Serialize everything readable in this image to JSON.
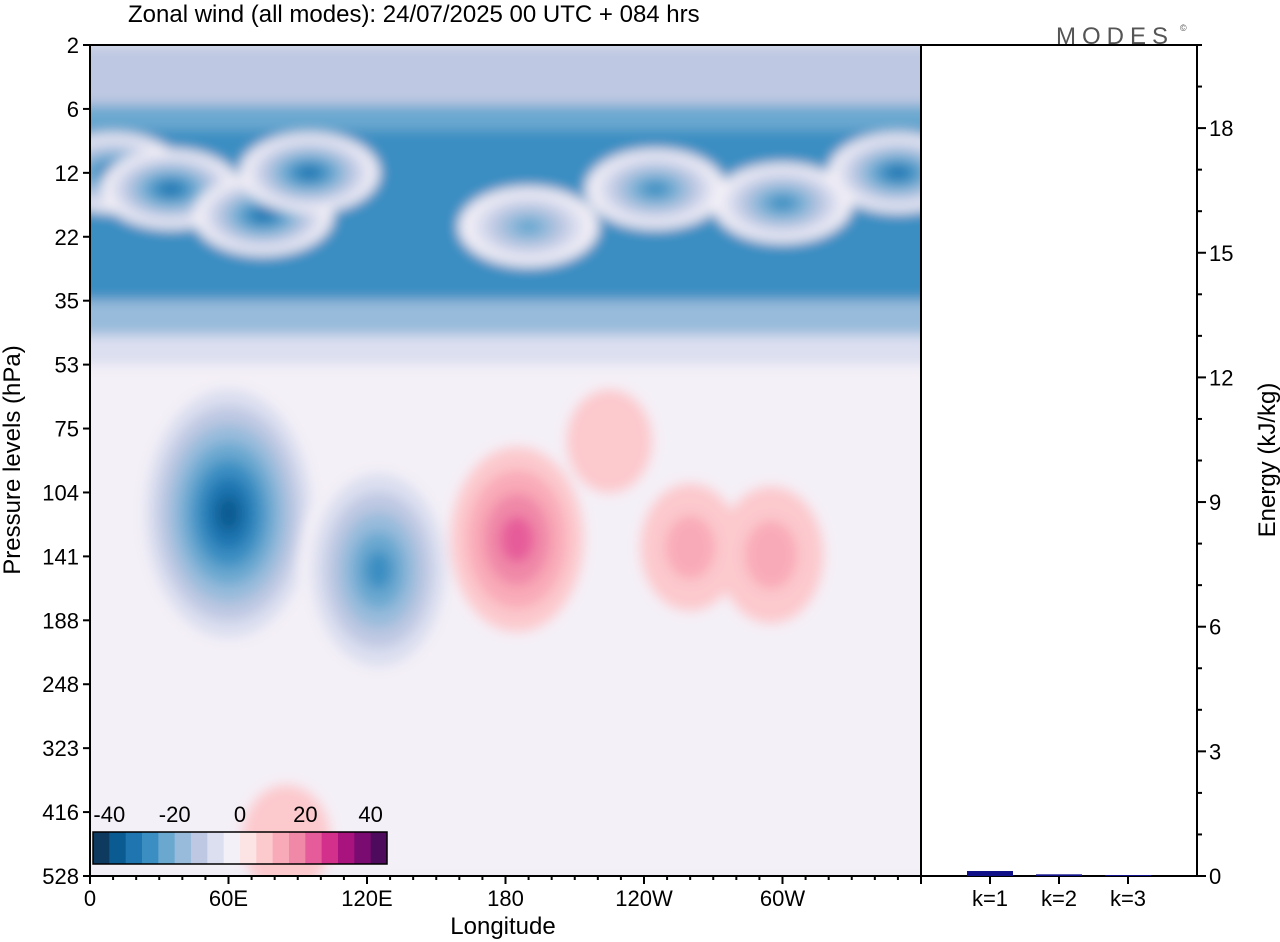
{
  "title": "Zonal wind (all modes):  24/07/2025  00 UTC  + 084 hrs",
  "logo": "MODES",
  "chart_data": [
    {
      "type": "heatmap",
      "xlabel": "Longitude",
      "ylabel": "Pressure levels (hPa)",
      "x_ticks": [
        "0",
        "60E",
        "120E",
        "180",
        "120W",
        "60W"
      ],
      "x_tick_degrees": [
        0,
        60,
        120,
        180,
        240,
        300
      ],
      "x_range_degrees": [
        0,
        360
      ],
      "y_ticks": [
        "2",
        "6",
        "12",
        "22",
        "35",
        "53",
        "75",
        "104",
        "141",
        "188",
        "248",
        "323",
        "416",
        "528"
      ],
      "colorbar": {
        "labels": [
          "-40",
          "-20",
          "0",
          "20",
          "40"
        ],
        "label_values": [
          -40,
          -20,
          0,
          20,
          40
        ],
        "range": [
          -45,
          45
        ],
        "step": 5,
        "colors": [
          "#0d3a5e",
          "#0a5b91",
          "#1f75b0",
          "#3b8ec2",
          "#6aa8d0",
          "#98bbdb",
          "#bec8e2",
          "#dcdff0",
          "#f4f0f7",
          "#fde4e4",
          "#fcc9cd",
          "#f9aab8",
          "#f088a8",
          "#e65b9a",
          "#d2308a",
          "#a8137e",
          "#7a0b70",
          "#4e0a5c"
        ]
      },
      "features": [
        {
          "lon": 10,
          "plev": 12,
          "wind": -38
        },
        {
          "lon": 35,
          "plev": 14,
          "wind": -36
        },
        {
          "lon": 75,
          "plev": 18,
          "wind": -37
        },
        {
          "lon": 95,
          "plev": 12,
          "wind": -36
        },
        {
          "lon": 190,
          "plev": 20,
          "wind": -25
        },
        {
          "lon": 245,
          "plev": 14,
          "wind": -30
        },
        {
          "lon": 300,
          "plev": 16,
          "wind": -32
        },
        {
          "lon": 350,
          "plev": 12,
          "wind": -38
        },
        {
          "lon": 60,
          "plev": 115,
          "wind": -43
        },
        {
          "lon": 125,
          "plev": 150,
          "wind": -32
        },
        {
          "lon": 185,
          "plev": 130,
          "wind": 22
        },
        {
          "lon": 295,
          "plev": 140,
          "wind": 12
        },
        {
          "lon": 260,
          "plev": 135,
          "wind": 10
        },
        {
          "lon": 225,
          "plev": 80,
          "wind": 5
        },
        {
          "lon": 85,
          "plev": 460,
          "wind": 6
        }
      ]
    },
    {
      "type": "bar",
      "categories": [
        "k=1",
        "k=2",
        "k=3"
      ],
      "values": [
        0.12,
        0.04,
        0.01
      ],
      "ylabel": "Energy (kJ/kg)",
      "ylim": [
        0,
        20
      ],
      "y_ticks": [
        "0",
        "3",
        "6",
        "9",
        "12",
        "15",
        "18"
      ],
      "y_tick_values": [
        0,
        3,
        6,
        9,
        12,
        15,
        18
      ],
      "bar_color": "#101088"
    }
  ]
}
